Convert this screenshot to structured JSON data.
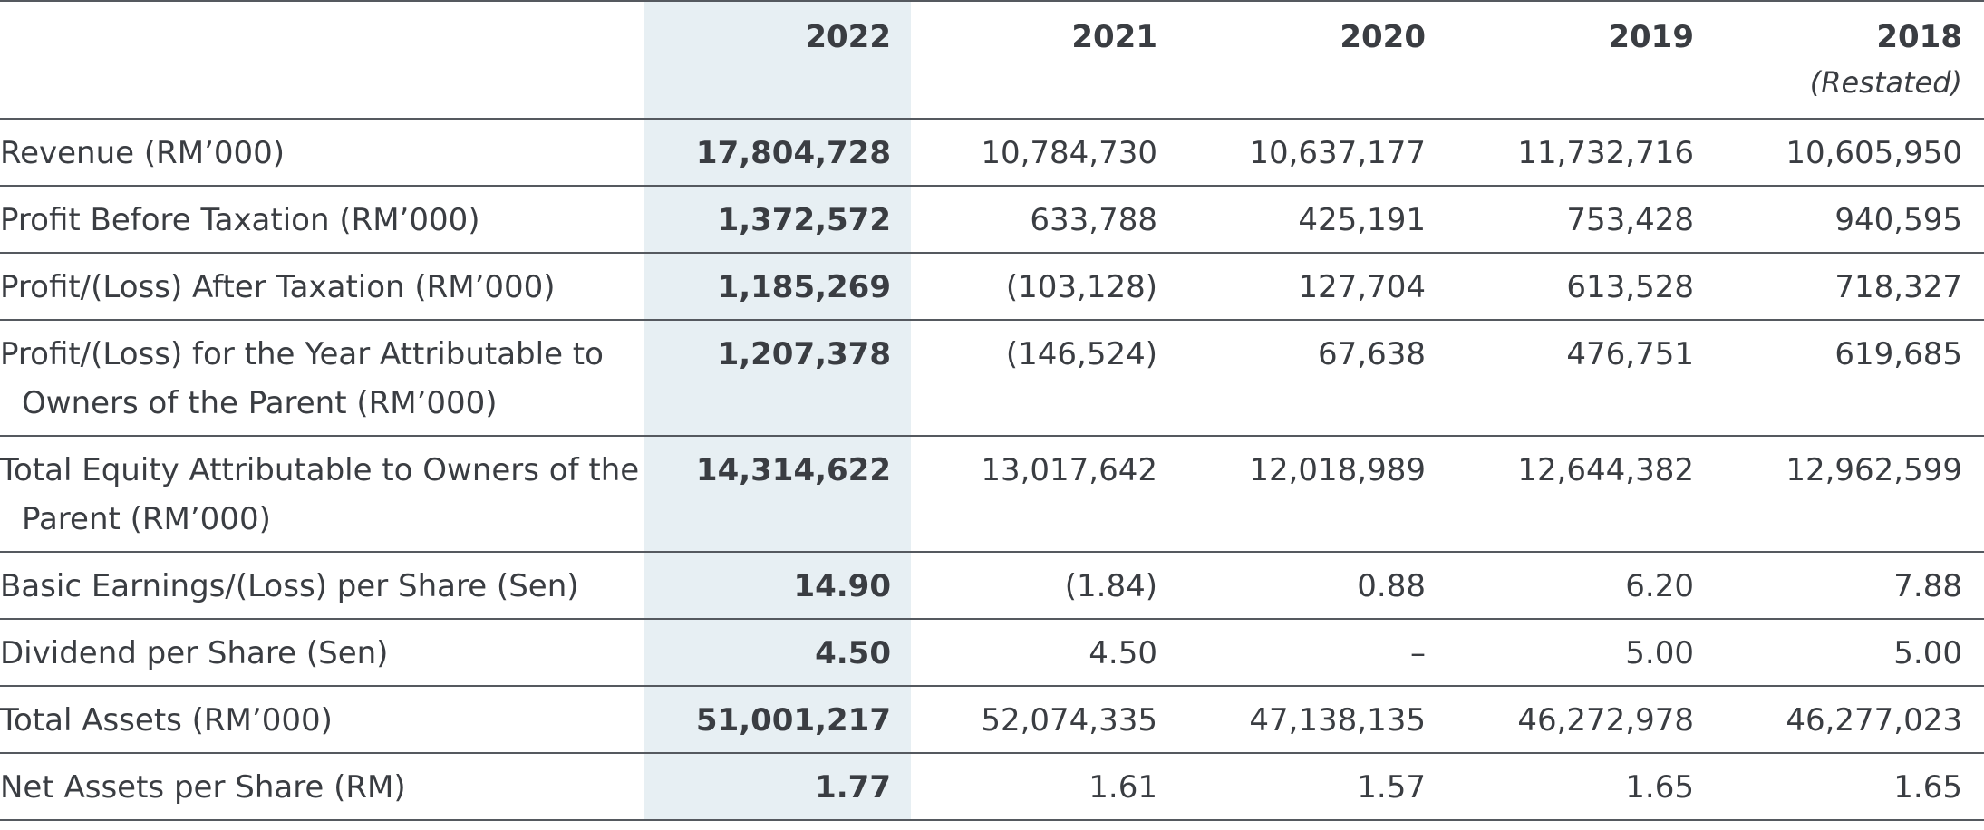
{
  "columns": {
    "y2022": "2022",
    "y2021": "2021",
    "y2020": "2020",
    "y2019": "2019",
    "y2018": "2018",
    "y2018_note": "(Restated)"
  },
  "rows": [
    {
      "label": "Revenue (RM’000)",
      "v2022": "17,804,728",
      "v2021": "10,784,730",
      "v2020": "10,637,177",
      "v2019": "11,732,716",
      "v2018": "10,605,950"
    },
    {
      "label": "Profit Before Taxation (RM’000)",
      "v2022": "1,372,572",
      "v2021": "633,788",
      "v2020": "425,191",
      "v2019": "753,428",
      "v2018": "940,595"
    },
    {
      "label": "Profit/(Loss) After Taxation (RM’000)",
      "v2022": "1,185,269",
      "v2021": "(103,128)",
      "v2020": "127,704",
      "v2019": "613,528",
      "v2018": "718,327"
    },
    {
      "label": "Profit/(Loss) for the Year Attributable to Owners of the Parent (RM’000)",
      "v2022": "1,207,378",
      "v2021": "(146,524)",
      "v2020": "67,638",
      "v2019": "476,751",
      "v2018": "619,685"
    },
    {
      "label": "Total Equity Attributable to Owners of the Parent (RM’000)",
      "v2022": "14,314,622",
      "v2021": "13,017,642",
      "v2020": "12,018,989",
      "v2019": "12,644,382",
      "v2018": "12,962,599"
    },
    {
      "label": "Basic Earnings/(Loss) per Share (Sen)",
      "v2022": "14.90",
      "v2021": "(1.84)",
      "v2020": "0.88",
      "v2019": "6.20",
      "v2018": "7.88"
    },
    {
      "label": "Dividend per Share (Sen)",
      "v2022": "4.50",
      "v2021": "4.50",
      "v2020": "–",
      "v2019": "5.00",
      "v2018": "5.00"
    },
    {
      "label": "Total Assets (RM’000)",
      "v2022": "51,001,217",
      "v2021": "52,074,335",
      "v2020": "47,138,135",
      "v2019": "46,272,978",
      "v2018": "46,277,023"
    },
    {
      "label": "Net Assets per Share (RM)",
      "v2022": "1.77",
      "v2021": "1.61",
      "v2020": "1.57",
      "v2019": "1.65",
      "v2018": "1.65"
    }
  ],
  "colors": {
    "highlight_column_bg": "#e7eff3",
    "rule": "#55595f",
    "text": "#3a3d42"
  }
}
